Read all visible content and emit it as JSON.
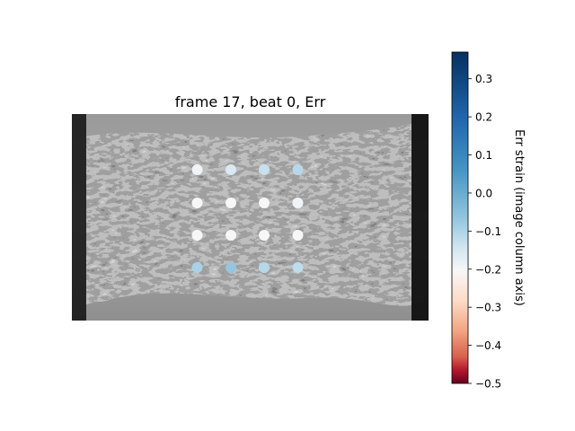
{
  "chart_data": {
    "type": "heatmap",
    "title": "frame 17, beat 0, Err",
    "colorbar": {
      "label": "Err strain (image column axis)",
      "range": [
        -0.5,
        0.37
      ],
      "ticks": [
        "0.3",
        "0.2",
        "0.1",
        "0.0",
        "−0.1",
        "−0.2",
        "−0.3",
        "−0.4",
        "−0.5"
      ],
      "tick_values": [
        0.3,
        0.2,
        0.1,
        0.0,
        -0.1,
        -0.2,
        -0.3,
        -0.4,
        -0.5
      ],
      "colormap": "RdBu"
    },
    "grid_rows": 4,
    "grid_cols": 4,
    "points": [
      {
        "row": 0,
        "col": 0,
        "value": 0.01
      },
      {
        "row": 0,
        "col": 1,
        "value": 0.05
      },
      {
        "row": 0,
        "col": 2,
        "value": 0.08
      },
      {
        "row": 0,
        "col": 3,
        "value": 0.1
      },
      {
        "row": 1,
        "col": 0,
        "value": 0.0
      },
      {
        "row": 1,
        "col": 1,
        "value": 0.0
      },
      {
        "row": 1,
        "col": 2,
        "value": 0.0
      },
      {
        "row": 1,
        "col": 3,
        "value": 0.01
      },
      {
        "row": 2,
        "col": 0,
        "value": 0.0
      },
      {
        "row": 2,
        "col": 1,
        "value": 0.0
      },
      {
        "row": 2,
        "col": 2,
        "value": 0.0
      },
      {
        "row": 2,
        "col": 3,
        "value": 0.0
      },
      {
        "row": 3,
        "col": 0,
        "value": 0.12
      },
      {
        "row": 3,
        "col": 1,
        "value": 0.15
      },
      {
        "row": 3,
        "col": 2,
        "value": 0.1
      },
      {
        "row": 3,
        "col": 3,
        "value": 0.09
      }
    ]
  }
}
